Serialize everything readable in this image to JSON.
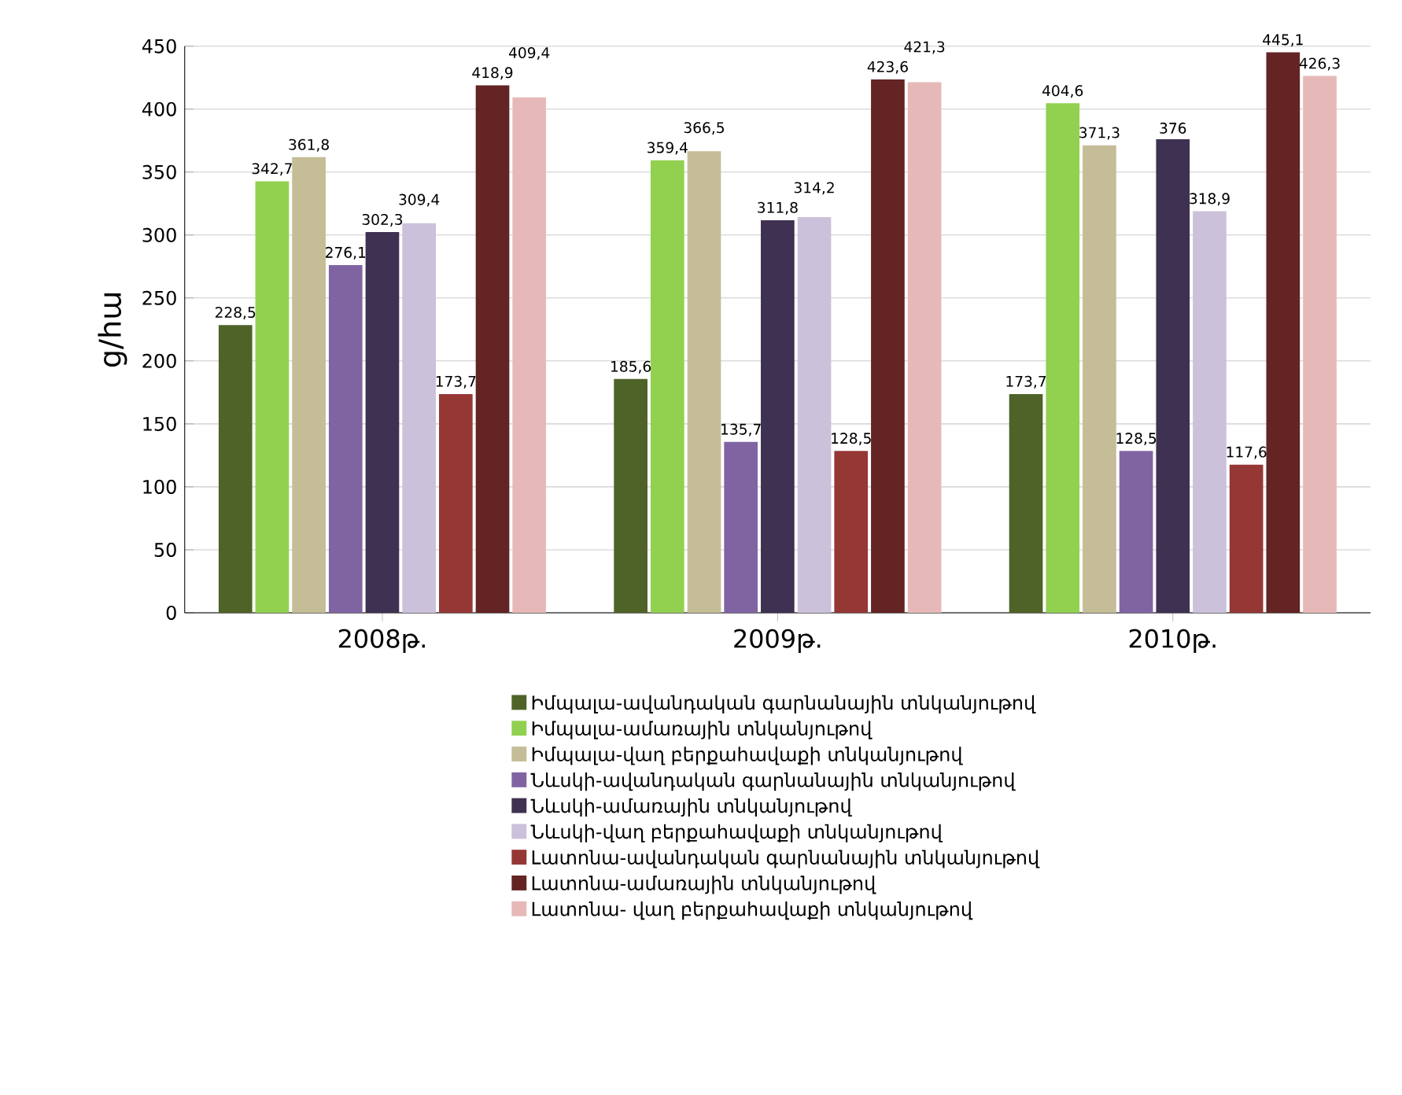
{
  "chart_data": {
    "type": "bar",
    "ylabel": "ց/հա",
    "categories": [
      "2008թ.",
      "2009թ.",
      "2010թ."
    ],
    "ylim": [
      0,
      450
    ],
    "yticks": [
      0,
      50,
      100,
      150,
      200,
      250,
      300,
      350,
      400,
      450
    ],
    "grid": "y",
    "legend": "bottom",
    "series": [
      {
        "name": "Իմպալա-ավանդական գարնանային տնկանյութով",
        "color": "#4f6228",
        "values": [
          228.5,
          185.6,
          173.7
        ],
        "value_labels": [
          "228,5",
          "185,6",
          "173,7"
        ]
      },
      {
        "name": "Իմպալա-ամառային տնկանյութով",
        "color": "#92d050",
        "values": [
          342.7,
          359.4,
          404.6
        ],
        "value_labels": [
          "342,7",
          "359,4",
          "404,6"
        ]
      },
      {
        "name": "Իմպալա-վաղ բերքահավաքի տնկանյութով",
        "color": "#c4bd97",
        "values": [
          361.8,
          366.5,
          371.3
        ],
        "value_labels": [
          "361,8",
          "366,5",
          "371,3"
        ]
      },
      {
        "name": "Նևսկի-ավանդական գարնանային տնկանյութով",
        "color": "#8064a2",
        "values": [
          276.1,
          135.7,
          128.5
        ],
        "value_labels": [
          "276,1",
          "135,7",
          "128,5"
        ]
      },
      {
        "name": "Նևսկի-ամառային տնկանյութով",
        "color": "#3f3151",
        "values": [
          302.3,
          311.8,
          376
        ],
        "value_labels": [
          "302,3",
          "311,8",
          "376"
        ]
      },
      {
        "name": "Նևսկի-վաղ բերքահավաքի տնկանյութով",
        "color": "#ccc1da",
        "values": [
          309.4,
          314.2,
          318.9
        ],
        "value_labels": [
          "309,4",
          "314,2",
          "318,9"
        ]
      },
      {
        "name": "Լատոնա-ավանդական գարնանային տնկանյութով",
        "color": "#953735",
        "values": [
          173.7,
          128.5,
          117.6
        ],
        "value_labels": [
          "173,7",
          "128,5",
          "117,6"
        ]
      },
      {
        "name": "Լատոնա-ամառային տնկանյութով",
        "color": "#632423",
        "values": [
          418.9,
          423.6,
          445.1
        ],
        "value_labels": [
          "418,9",
          "423,6",
          "445,1"
        ]
      },
      {
        "name": "Լատոնա- վաղ բերքահավաքի տնկանյութով",
        "color": "#e6b9b8",
        "values": [
          409.4,
          421.3,
          426.3
        ],
        "value_labels": [
          "409,4",
          "421,3",
          "426,3"
        ]
      }
    ]
  }
}
